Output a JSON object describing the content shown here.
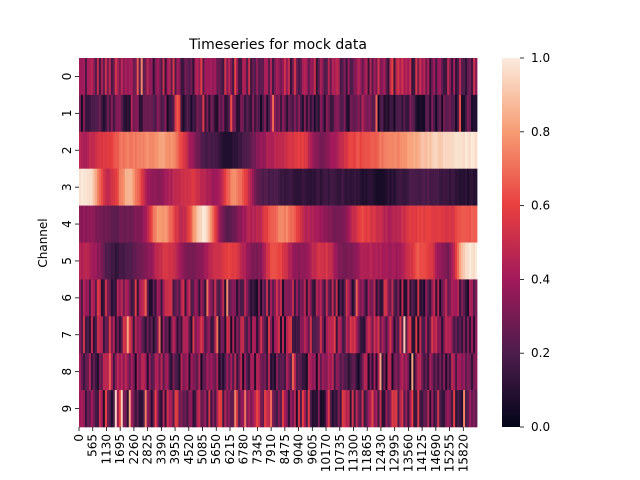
{
  "chart_data": {
    "type": "heatmap",
    "title": "Timeseries for mock data",
    "ylabel": "Channel",
    "xlabel": "",
    "rows": [
      "0",
      "1",
      "2",
      "3",
      "4",
      "5",
      "6",
      "7",
      "8",
      "9"
    ],
    "x_range": [
      0,
      16100
    ],
    "x_ticks": [
      "0",
      "565",
      "1130",
      "1695",
      "2260",
      "2825",
      "3390",
      "3955",
      "4520",
      "5085",
      "5650",
      "6215",
      "6780",
      "7345",
      "7910",
      "8475",
      "9040",
      "9605",
      "10170",
      "10735",
      "11300",
      "11865",
      "12430",
      "12995",
      "13560",
      "14125",
      "14690",
      "15255",
      "15820"
    ],
    "value_range": [
      0.0,
      1.0
    ],
    "colorbar_ticks": [
      "0.0",
      "0.2",
      "0.4",
      "0.6",
      "0.8",
      "1.0"
    ],
    "colormap": "rocket",
    "colors": {
      "dark": "#03051a",
      "mid_dark": "#4c1d4b",
      "mid": "#a11a5b",
      "mid_bright": "#e83f3f",
      "bright": "#f69c73",
      "light": "#faebdd"
    },
    "row_profiles": [
      {
        "row": "0",
        "kind": "noise",
        "mean": 0.33,
        "spread": 0.22
      },
      {
        "row": "1",
        "kind": "noise",
        "mean": 0.2,
        "spread": 0.16
      },
      {
        "row": "2",
        "kind": "smooth",
        "peaks": [
          [
            250,
            0.45
          ],
          [
            900,
            0.55
          ],
          [
            1900,
            0.72
          ],
          [
            3500,
            0.8
          ],
          [
            5200,
            0.2
          ],
          [
            6000,
            0.1
          ],
          [
            8000,
            0.45
          ],
          [
            9000,
            0.6
          ],
          [
            9700,
            0.3
          ],
          [
            11300,
            0.62
          ],
          [
            12700,
            0.75
          ],
          [
            14400,
            0.92
          ],
          [
            15700,
            0.98
          ]
        ]
      },
      {
        "row": "3",
        "kind": "smooth",
        "peaks": [
          [
            350,
            0.98
          ],
          [
            1200,
            0.5
          ],
          [
            2000,
            0.85
          ],
          [
            3000,
            0.35
          ],
          [
            4500,
            0.55
          ],
          [
            5500,
            0.4
          ],
          [
            6300,
            0.75
          ],
          [
            7500,
            0.2
          ],
          [
            9000,
            0.12
          ],
          [
            10500,
            0.15
          ],
          [
            12000,
            0.08
          ],
          [
            14000,
            0.2
          ],
          [
            15800,
            0.1
          ]
        ]
      },
      {
        "row": "4",
        "kind": "smooth",
        "peaks": [
          [
            300,
            0.35
          ],
          [
            1400,
            0.25
          ],
          [
            2400,
            0.3
          ],
          [
            3300,
            0.82
          ],
          [
            4200,
            0.5
          ],
          [
            5000,
            0.98
          ],
          [
            6000,
            0.25
          ],
          [
            7000,
            0.45
          ],
          [
            8300,
            0.75
          ],
          [
            9300,
            0.45
          ],
          [
            10500,
            0.3
          ],
          [
            11500,
            0.6
          ],
          [
            12600,
            0.45
          ],
          [
            13800,
            0.6
          ],
          [
            14900,
            0.55
          ],
          [
            15600,
            0.65
          ]
        ]
      },
      {
        "row": "5",
        "kind": "smooth",
        "peaks": [
          [
            300,
            0.45
          ],
          [
            1500,
            0.15
          ],
          [
            2600,
            0.3
          ],
          [
            3500,
            0.55
          ],
          [
            4500,
            0.3
          ],
          [
            6100,
            0.6
          ],
          [
            7200,
            0.3
          ],
          [
            7900,
            0.65
          ],
          [
            8900,
            0.35
          ],
          [
            9900,
            0.55
          ],
          [
            10700,
            0.3
          ],
          [
            11700,
            0.45
          ],
          [
            12800,
            0.4
          ],
          [
            13900,
            0.65
          ],
          [
            14900,
            0.3
          ],
          [
            15700,
            0.98
          ]
        ]
      },
      {
        "row": "6",
        "kind": "noise",
        "mean": 0.3,
        "spread": 0.24
      },
      {
        "row": "7",
        "kind": "noise",
        "mean": 0.32,
        "spread": 0.26
      },
      {
        "row": "8",
        "kind": "noise",
        "mean": 0.26,
        "spread": 0.22
      },
      {
        "row": "9",
        "kind": "noise",
        "mean": 0.34,
        "spread": 0.28
      }
    ]
  }
}
